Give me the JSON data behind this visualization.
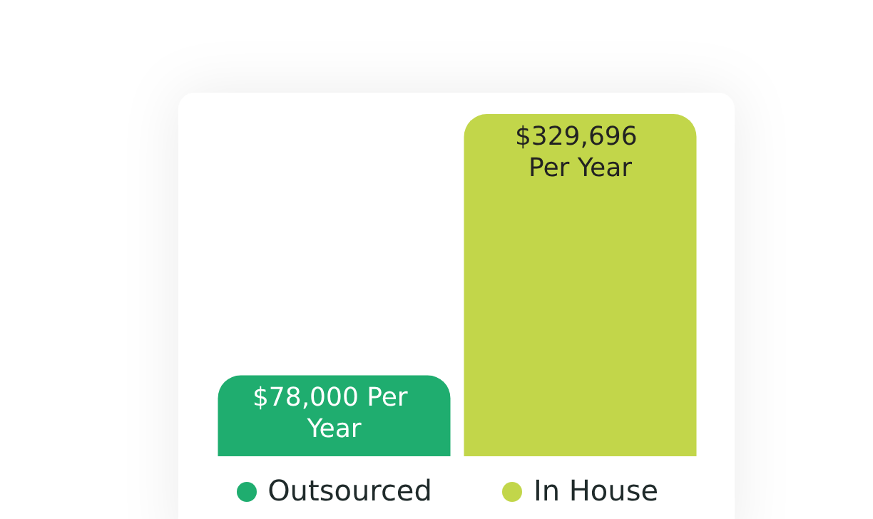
{
  "chart_data": {
    "type": "bar",
    "categories": [
      "Outsourced",
      "In House"
    ],
    "values": [
      78000,
      329696
    ],
    "colors": [
      "#1fad6f",
      "#c2d64a"
    ],
    "value_labels": [
      "$78,000 Per Year",
      "$329,696 Per Year"
    ],
    "grid": false
  }
}
